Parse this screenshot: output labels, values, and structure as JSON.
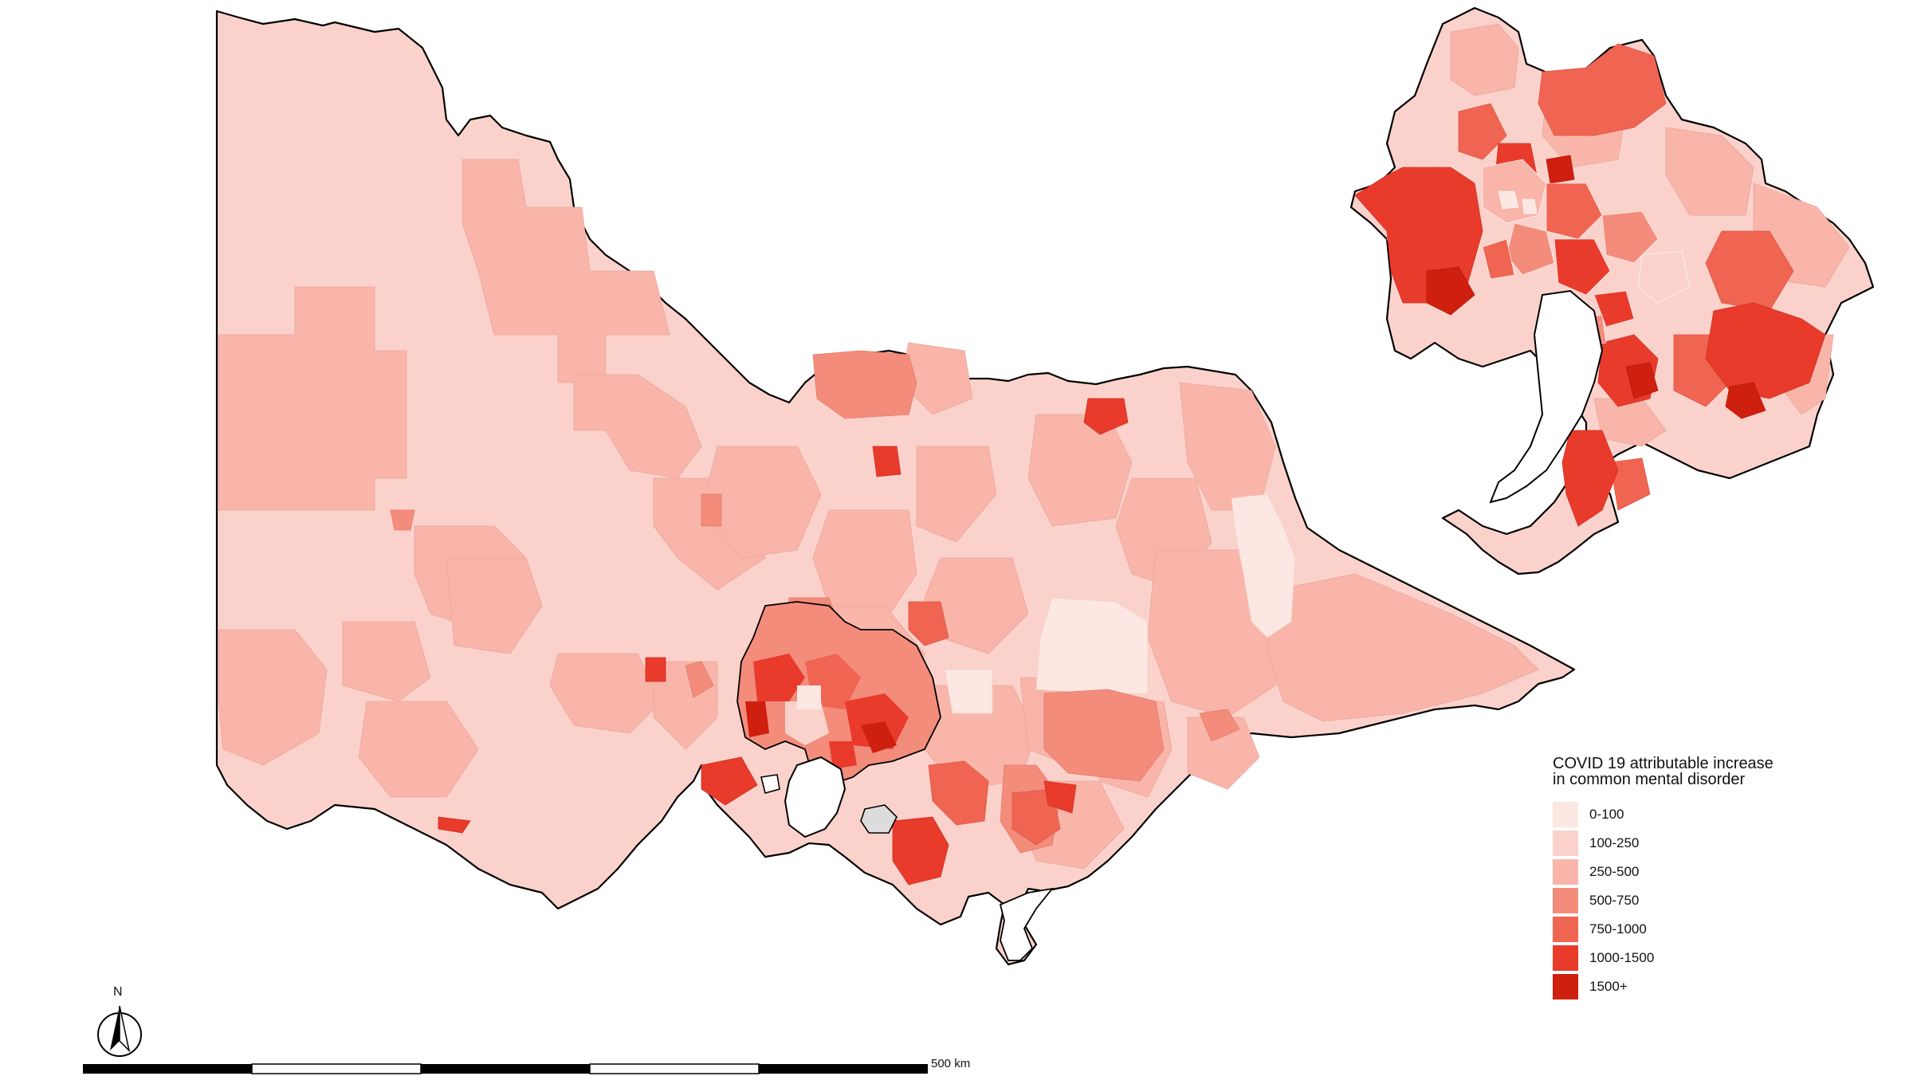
{
  "map": {
    "legend": {
      "title_line1": "COVID 19 attributable increase",
      "title_line2": "in common mental disorder",
      "classes": [
        {
          "label": "0-100",
          "color": "#fde7e2"
        },
        {
          "label": "100-250",
          "color": "#fbd2cb"
        },
        {
          "label": "250-500",
          "color": "#f9b5aa"
        },
        {
          "label": "500-750",
          "color": "#f48c7c"
        },
        {
          "label": "750-1000",
          "color": "#ef6552"
        },
        {
          "label": "1000-1500",
          "color": "#e83b2c"
        },
        {
          "label": "1500+",
          "color": "#cf1f0f"
        }
      ]
    },
    "north_arrow_label": "N",
    "scale_bar_label": "500 km",
    "border_color": "#000000",
    "excluded_region_color": "#dcdcdc"
  }
}
